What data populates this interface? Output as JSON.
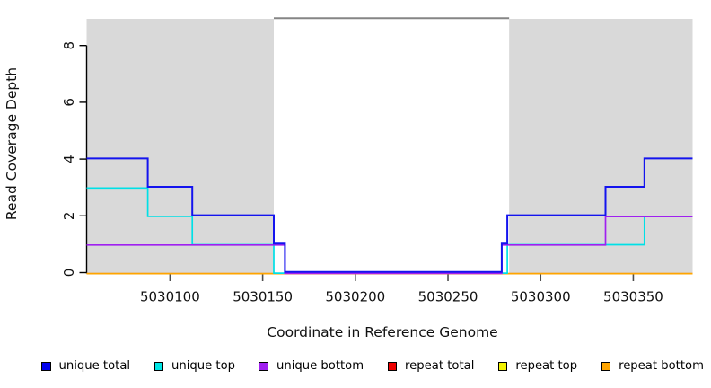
{
  "figure": {
    "x_axis_title": "Coordinate in Reference Genome",
    "y_axis_title": "Read Coverage Depth"
  },
  "chart_data": {
    "type": "line",
    "subtype": "step-coverage",
    "title": "",
    "xlabel": "Coordinate in Reference Genome",
    "ylabel": "Read Coverage Depth",
    "xlim": [
      5030055,
      5030382
    ],
    "ylim": [
      0,
      9
    ],
    "x_ticks": [
      5030100,
      5030150,
      5030200,
      5030250,
      5030300,
      5030350
    ],
    "y_ticks": [
      0,
      2,
      4,
      6,
      8
    ],
    "grid": "off",
    "legend_position": "bottom",
    "shaded_regions": {
      "color": "#D9D9D9",
      "ranges": [
        [
          5030055,
          5030156
        ],
        [
          5030283,
          5030382
        ]
      ]
    },
    "repeat_region_bar": {
      "color": "#858585",
      "range": [
        5030156,
        5030283
      ],
      "y": 9
    },
    "series": [
      {
        "name": "repeat total",
        "color": "#EE0000",
        "points": [
          [
            5030055,
            0
          ],
          [
            5030382,
            0
          ]
        ]
      },
      {
        "name": "repeat top",
        "color": "#F2F200",
        "points": [
          [
            5030055,
            0
          ],
          [
            5030382,
            0
          ]
        ]
      },
      {
        "name": "repeat bottom",
        "color": "#FFA500",
        "points": [
          [
            5030055,
            0
          ],
          [
            5030382,
            0
          ]
        ]
      },
      {
        "name": "unique top",
        "color": "#00E0E6",
        "points": [
          [
            5030055,
            3
          ],
          [
            5030088,
            2
          ],
          [
            5030112,
            1
          ],
          [
            5030156,
            0
          ],
          [
            5030282,
            1
          ],
          [
            5030356,
            2
          ],
          [
            5030382,
            2
          ]
        ]
      },
      {
        "name": "unique bottom",
        "color": "#A020F0",
        "points": [
          [
            5030055,
            1
          ],
          [
            5030162,
            0
          ],
          [
            5030279,
            1
          ],
          [
            5030335,
            2
          ],
          [
            5030382,
            2
          ]
        ]
      },
      {
        "name": "unique total",
        "color": "#1414EE",
        "points": [
          [
            5030055,
            4
          ],
          [
            5030088,
            3
          ],
          [
            5030112,
            2
          ],
          [
            5030156,
            1
          ],
          [
            5030162,
            0
          ],
          [
            5030279,
            1
          ],
          [
            5030282,
            2
          ],
          [
            5030335,
            3
          ],
          [
            5030356,
            4
          ],
          [
            5030382,
            4
          ]
        ]
      }
    ]
  },
  "legend": {
    "items": [
      {
        "label": "unique total",
        "color": "#0000EE"
      },
      {
        "label": "unique top",
        "color": "#00E6E6"
      },
      {
        "label": "unique bottom",
        "color": "#A020F0"
      },
      {
        "label": "repeat total",
        "color": "#EE0000"
      },
      {
        "label": "repeat top",
        "color": "#F2F200"
      },
      {
        "label": "repeat bottom",
        "color": "#FFA500"
      }
    ]
  }
}
